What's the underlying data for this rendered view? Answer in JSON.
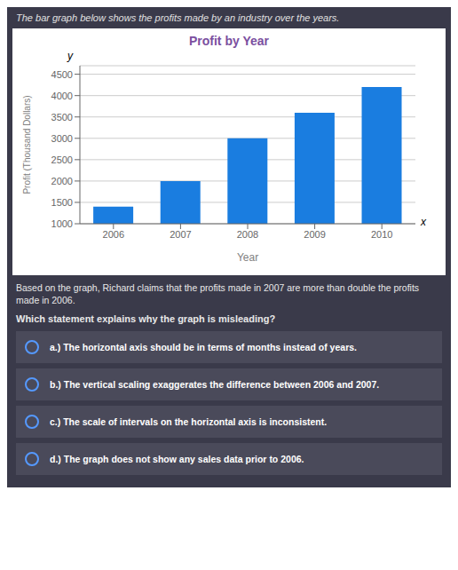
{
  "chart_data": {
    "type": "bar",
    "title": "Profit by Year",
    "subtitle": "The bar graph below shows the profits made by an industry over the years.",
    "xlabel": "Year",
    "ylabel": "Profit (Thousand Dollars)",
    "categories": [
      "2006",
      "2007",
      "2008",
      "2009",
      "2010"
    ],
    "values": [
      1400,
      2000,
      3000,
      3600,
      4200
    ],
    "color": "#1a7de0",
    "ylim": [
      1000,
      4700
    ],
    "yticks": [
      1000,
      1500,
      2000,
      2500,
      3000,
      3500,
      4000,
      4500
    ],
    "grid": true,
    "annotations": [
      "Based on the graph, Richard claims that the profits made in 2007 are more than double the profits\nmade in 2006.",
      "Which statement explains why the graph is misleading?",
      "a.) The horizontal axis should be in terms of months instead of years.",
      "b.) The vertical scaling exaggerates the difference between 2006 and 2007.",
      "c.) The scale of intervals on the horizontal axis is inconsistent.",
      "d.) The graph does not show any sales data prior to 2006.",
      "y",
      "x"
    ]
  }
}
